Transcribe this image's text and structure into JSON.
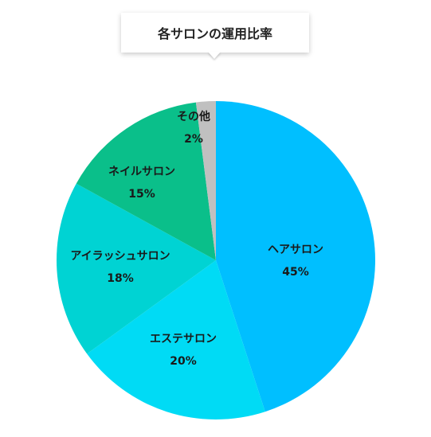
{
  "chart_data": {
    "type": "pie",
    "title": "各サロンの運用比率",
    "slices": [
      {
        "label": "ヘアサロン",
        "value": 45,
        "value_label": "45%",
        "color": "#00bfff"
      },
      {
        "label": "エステサロン",
        "value": 20,
        "value_label": "20%",
        "color": "#00dbf5"
      },
      {
        "label": "アイラッシュサロン",
        "value": 18,
        "value_label": "18%",
        "color": "#00d3d3"
      },
      {
        "label": "ネイルサロン",
        "value": 15,
        "value_label": "15%",
        "color": "#0abf8a"
      },
      {
        "label": "その他",
        "value": 2,
        "value_label": "2%",
        "color": "#c0c0c0"
      }
    ],
    "start": "top",
    "direction": "clockwise"
  }
}
